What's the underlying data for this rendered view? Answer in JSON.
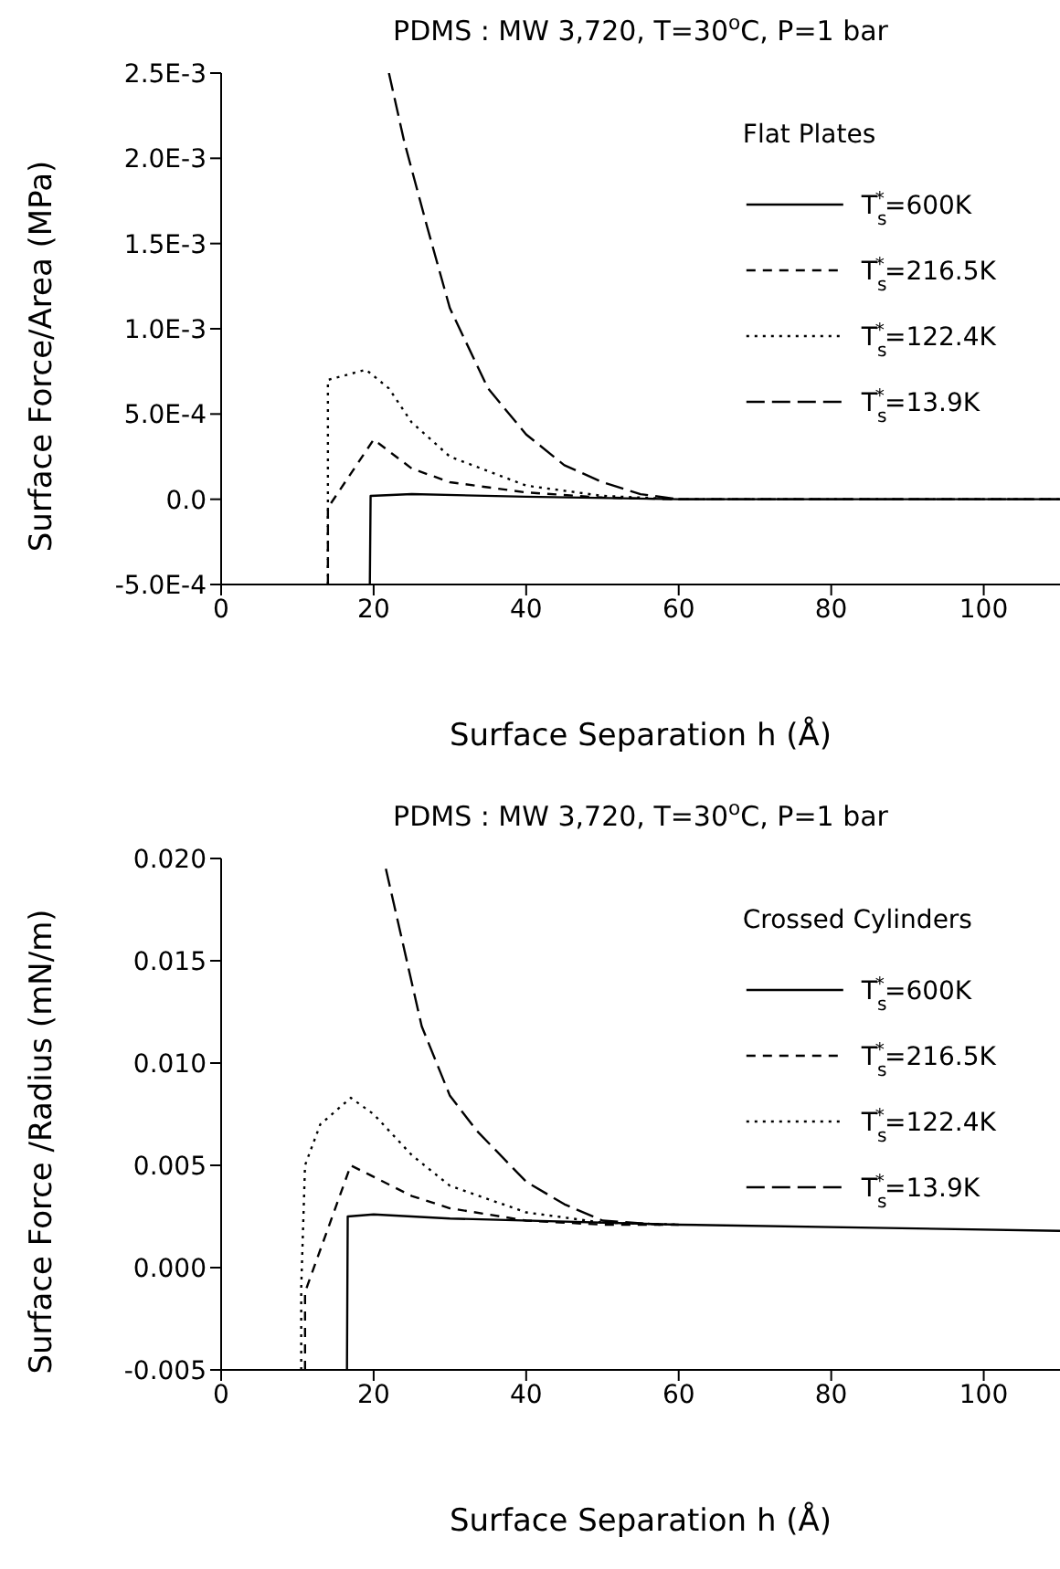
{
  "chart_data": [
    {
      "type": "line",
      "title": "PDMS : MW 3,720, T=30$^{o}$C, P=1 bar",
      "xlabel": "Surface Separation h (Å)",
      "ylabel": "Surface Force/Area (MPa)",
      "legend_title": "Flat Plates",
      "legend": "top right",
      "xlim": [
        0,
        110
      ],
      "xticks": [
        0,
        20,
        40,
        60,
        80,
        100
      ],
      "ylim": [
        -0.0005,
        0.0025
      ],
      "yticks": [
        {
          "value": -0.0005,
          "label": "-5.0E-4"
        },
        {
          "value": 0,
          "label": "0.0"
        },
        {
          "value": 0.0005,
          "label": "5.0E-4"
        },
        {
          "value": 0.001,
          "label": "1.0E-3"
        },
        {
          "value": 0.0015,
          "label": "1.5E-3"
        },
        {
          "value": 0.002,
          "label": "2.0E-3"
        },
        {
          "value": 0.0025,
          "label": "2.5E-3"
        }
      ],
      "series": [
        {
          "name": "T$_{s}$$^{*}$=600K",
          "color": "#000000",
          "line_style": "solid",
          "x": [
            19.5,
            19.6,
            25,
            40,
            60,
            110
          ],
          "values": [
            -0.0005,
            2e-05,
            3e-05,
            1.5e-05,
            0,
            0
          ]
        },
        {
          "name": "T$_{s}$$^{*}$=216.5K",
          "color": "#000000",
          "line_style": "dashed",
          "x": [
            14,
            14,
            20,
            25,
            30,
            40,
            50,
            60,
            110
          ],
          "values": [
            -0.0005,
            -5e-05,
            0.00035,
            0.00018,
            0.0001,
            4e-05,
            1e-05,
            0,
            0
          ]
        },
        {
          "name": "T$_{s}$$^{*}$=122.4K",
          "color": "#000000",
          "line_style": "dotted",
          "x": [
            14,
            14,
            19,
            22,
            25,
            30,
            40,
            50,
            60,
            110
          ],
          "values": [
            -0.0005,
            0.0007,
            0.00076,
            0.00065,
            0.00045,
            0.00025,
            8e-05,
            2e-05,
            0,
            0
          ]
        },
        {
          "name": "T$_{s}$$^{*}$=13.9K",
          "color": "#000000",
          "line_style": "dashed",
          "x": [
            22,
            24,
            27,
            30,
            35,
            40,
            45,
            50,
            55,
            60,
            110
          ],
          "values": [
            0.0025,
            0.0021,
            0.0016,
            0.00112,
            0.00065,
            0.00038,
            0.0002,
            0.0001,
            3e-05,
            0,
            0
          ]
        }
      ]
    },
    {
      "type": "line",
      "title": "PDMS : MW 3,720, T=30$^{o}$C, P=1 bar",
      "xlabel": "Surface Separation h (Å)",
      "ylabel": "Surface Force /Radius (mN/m)",
      "legend_title": "Crossed Cylinders",
      "legend": "top right",
      "xlim": [
        0,
        110
      ],
      "xticks": [
        0,
        20,
        40,
        60,
        80,
        100
      ],
      "ylim": [
        -0.005,
        0.02
      ],
      "yticks": [
        {
          "value": -0.005,
          "label": "-0.005"
        },
        {
          "value": 0,
          "label": "0.000"
        },
        {
          "value": 0.005,
          "label": "0.005"
        },
        {
          "value": 0.01,
          "label": "0.010"
        },
        {
          "value": 0.015,
          "label": "0.015"
        },
        {
          "value": 0.02,
          "label": "0.020"
        }
      ],
      "series": [
        {
          "name": "T$_{s}$$^{*}$=600K",
          "color": "#000000",
          "line_style": "solid",
          "x": [
            16.5,
            16.6,
            20,
            30,
            60,
            110
          ],
          "values": [
            -0.005,
            0.0025,
            0.0026,
            0.0024,
            0.0021,
            0.0018
          ]
        },
        {
          "name": "T$_{s}$$^{*}$=216.5K",
          "color": "#000000",
          "line_style": "dashed",
          "x": [
            11,
            11,
            17,
            25,
            30,
            40,
            50,
            60
          ],
          "values": [
            -0.005,
            -0.0012,
            0.005,
            0.0035,
            0.0029,
            0.0023,
            0.0021,
            0.0021
          ]
        },
        {
          "name": "T$_{s}$$^{*}$=122.4K",
          "color": "#000000",
          "line_style": "dotted",
          "x": [
            10.5,
            10.5,
            11,
            13,
            17,
            20,
            25,
            30,
            40,
            50,
            60
          ],
          "values": [
            -0.005,
            -0.001,
            0.005,
            0.007,
            0.0083,
            0.0075,
            0.0055,
            0.004,
            0.0027,
            0.0022,
            0.0021
          ]
        },
        {
          "name": "T$_{s}$$^{*}$=13.9K",
          "color": "#000000",
          "line_style": "dashed",
          "x": [
            21.6,
            26.3,
            30,
            33.5,
            40,
            45,
            50,
            57.6
          ],
          "values": [
            0.0195,
            0.0118,
            0.0084,
            0.0067,
            0.0042,
            0.0031,
            0.0023,
            0.0021
          ]
        }
      ]
    }
  ]
}
